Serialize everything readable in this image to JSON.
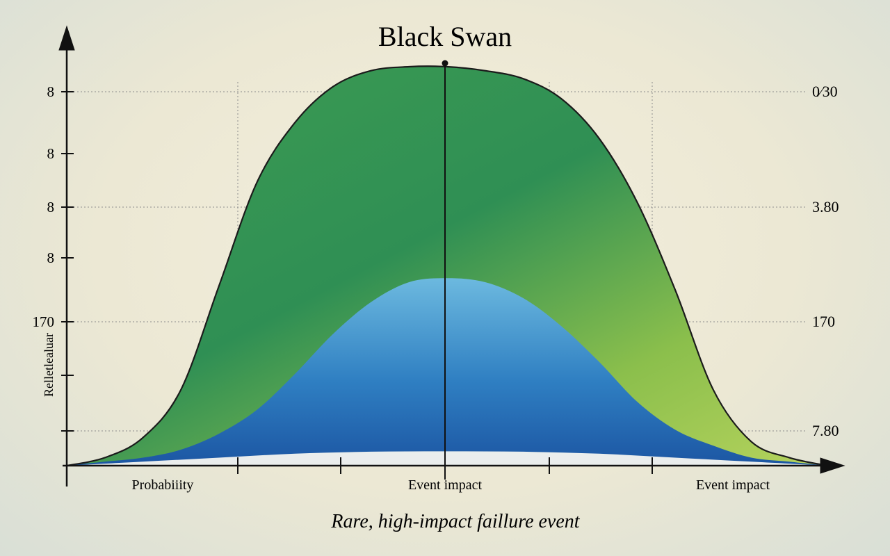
{
  "chart_data": {
    "type": "area",
    "title": "Black Swan",
    "caption": "Rare, high-impact faillure event",
    "ylabel": "Relletlealuar",
    "x_ticks": [
      "Probabiiity",
      "Event impact",
      "Event impact"
    ],
    "y_left_ticks": [
      "8",
      "8",
      "8",
      "8",
      "170"
    ],
    "y_right_ticks": [
      "0⁄30",
      "3.80",
      "170",
      "7.80"
    ],
    "xlim": [
      0,
      1
    ],
    "ylim": [
      0,
      1
    ],
    "grid": true,
    "series": [
      {
        "name": "outer-green",
        "color_light": "#a6c957",
        "color_dark": "#2e9653",
        "x": [
          0.0,
          0.05,
          0.1,
          0.15,
          0.2,
          0.25,
          0.3,
          0.35,
          0.4,
          0.45,
          0.5,
          0.55,
          0.6,
          0.65,
          0.7,
          0.75,
          0.8,
          0.85,
          0.9,
          0.95,
          1.0
        ],
        "values": [
          0.0,
          0.02,
          0.07,
          0.19,
          0.45,
          0.71,
          0.86,
          0.95,
          0.99,
          1.0,
          1.0,
          0.99,
          0.97,
          0.92,
          0.82,
          0.66,
          0.44,
          0.19,
          0.06,
          0.02,
          0.0
        ]
      },
      {
        "name": "inner-blue",
        "color_light": "#5fb0dc",
        "color_dark": "#1f5fa8",
        "x": [
          0.0,
          0.05,
          0.1,
          0.15,
          0.2,
          0.25,
          0.3,
          0.35,
          0.4,
          0.45,
          0.5,
          0.55,
          0.6,
          0.65,
          0.7,
          0.75,
          0.8,
          0.85,
          0.9,
          0.95,
          1.0
        ],
        "values": [
          0.0,
          0.01,
          0.02,
          0.04,
          0.08,
          0.14,
          0.23,
          0.33,
          0.41,
          0.46,
          0.47,
          0.46,
          0.42,
          0.35,
          0.26,
          0.16,
          0.09,
          0.05,
          0.02,
          0.01,
          0.0
        ]
      },
      {
        "name": "baseline-white",
        "color_light": "#f5f5f0",
        "color_dark": "#f5f5f0",
        "x": [
          0.0,
          0.1,
          0.2,
          0.3,
          0.4,
          0.5,
          0.6,
          0.7,
          0.8,
          0.9,
          1.0
        ],
        "values": [
          0.0,
          0.01,
          0.02,
          0.03,
          0.035,
          0.036,
          0.035,
          0.03,
          0.02,
          0.01,
          0.0
        ]
      }
    ]
  },
  "colors": {
    "axis": "#111111",
    "grid": "#8c8c8c"
  }
}
